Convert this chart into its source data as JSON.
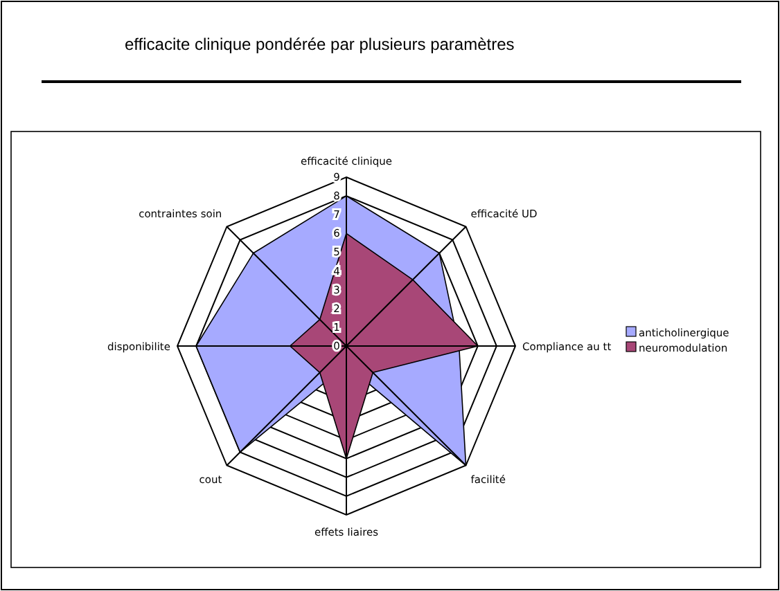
{
  "chart_data": {
    "type": "radar",
    "title": "efficacite clinique pondérée par plusieurs paramètres",
    "categories": [
      "efficacité clinique",
      "efficacité UD",
      "Compliance au tt",
      "facilité",
      "effets Iiaires",
      "cout",
      "disponibilite",
      "contraintes soin"
    ],
    "series": [
      {
        "name": "anticholinergique",
        "color": "#a6aaff",
        "values": [
          8,
          7,
          6,
          9,
          1,
          8,
          8,
          7
        ]
      },
      {
        "name": "neuromodulation",
        "color": "#a84777",
        "values": [
          6,
          5,
          7,
          2,
          6,
          2,
          3,
          2
        ]
      }
    ],
    "ylim": [
      0,
      9
    ],
    "yticks": [
      0,
      1,
      2,
      3,
      4,
      5,
      6,
      7,
      8,
      9
    ],
    "legend": "right"
  }
}
